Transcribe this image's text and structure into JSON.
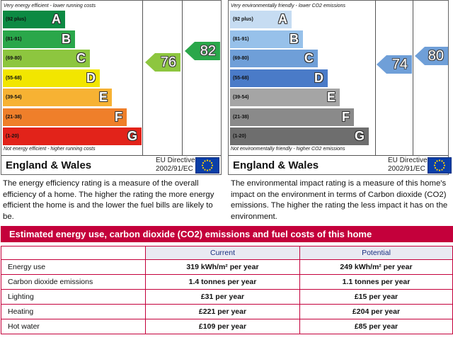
{
  "energy_panel": {
    "top_caption": "Very energy efficient - lower running costs",
    "bottom_caption": "Not energy efficient - higher running costs",
    "bands": [
      {
        "range": "(92 plus)",
        "letter": "A",
        "color": "#0c8a43"
      },
      {
        "range": "(81-91)",
        "letter": "B",
        "color": "#2aa74a"
      },
      {
        "range": "(69-80)",
        "letter": "C",
        "color": "#8dc63f"
      },
      {
        "range": "(55-68)",
        "letter": "D",
        "color": "#f2e600"
      },
      {
        "range": "(39-54)",
        "letter": "E",
        "color": "#f7b233"
      },
      {
        "range": "(21-38)",
        "letter": "F",
        "color": "#ef7f2a"
      },
      {
        "range": "(1-20)",
        "letter": "G",
        "color": "#e2231a"
      }
    ],
    "current_rating": "76",
    "current_color": "#8dc63f",
    "potential_rating": "82",
    "potential_color": "#2aa74a",
    "region": "England & Wales",
    "directive_line1": "EU Directive",
    "directive_line2": "2002/91/EC"
  },
  "environment_panel": {
    "top_caption": "Very environmentally friendly - lower CO2 emissions",
    "bottom_caption": "Not environmentally friendly - higher CO2 emissions",
    "bands": [
      {
        "range": "(92 plus)",
        "letter": "A",
        "color": "#c6dcf2"
      },
      {
        "range": "(81-91)",
        "letter": "B",
        "color": "#97c1ea"
      },
      {
        "range": "(69-80)",
        "letter": "C",
        "color": "#6f9fd8"
      },
      {
        "range": "(55-68)",
        "letter": "D",
        "color": "#4a7bc8"
      },
      {
        "range": "(39-54)",
        "letter": "E",
        "color": "#a5a5a5"
      },
      {
        "range": "(21-38)",
        "letter": "F",
        "color": "#8a8a8a"
      },
      {
        "range": "(1-20)",
        "letter": "G",
        "color": "#6e6e6e"
      }
    ],
    "current_rating": "74",
    "current_color": "#6f9fd8",
    "potential_rating": "80",
    "potential_color": "#6f9fd8",
    "region": "England & Wales",
    "directive_line1": "EU Directive",
    "directive_line2": "2002/91/EC"
  },
  "descriptions": {
    "energy": "The energy efficiency rating is a measure of the overall efficiency of a home. The higher the rating the more energy efficient the home is and the lower the fuel bills are likely to be.",
    "environment": "The environmental impact rating is a measure of this home's impact on the environment in terms of Carbon dioxide (CO2) emissions. The higher the rating the less impact it has on the environment."
  },
  "banner": "Estimated energy use, carbon dioxide (CO2) emissions and fuel costs of this home",
  "cost_table": {
    "headers": [
      "",
      "Current",
      "Potential"
    ],
    "rows": [
      {
        "label": "Energy use",
        "current": "319 kWh/m² per year",
        "potential": "249 kWh/m² per year"
      },
      {
        "label": "Carbon dioxide emissions",
        "current": "1.4 tonnes per year",
        "potential": "1.1 tonnes per year"
      },
      {
        "label": "Lighting",
        "current": "£31 per year",
        "potential": "£15 per year"
      },
      {
        "label": "Heating",
        "current": "£221 per year",
        "potential": "£204 per year"
      },
      {
        "label": "Hot water",
        "current": "£109 per year",
        "potential": "£85 per year"
      }
    ]
  }
}
